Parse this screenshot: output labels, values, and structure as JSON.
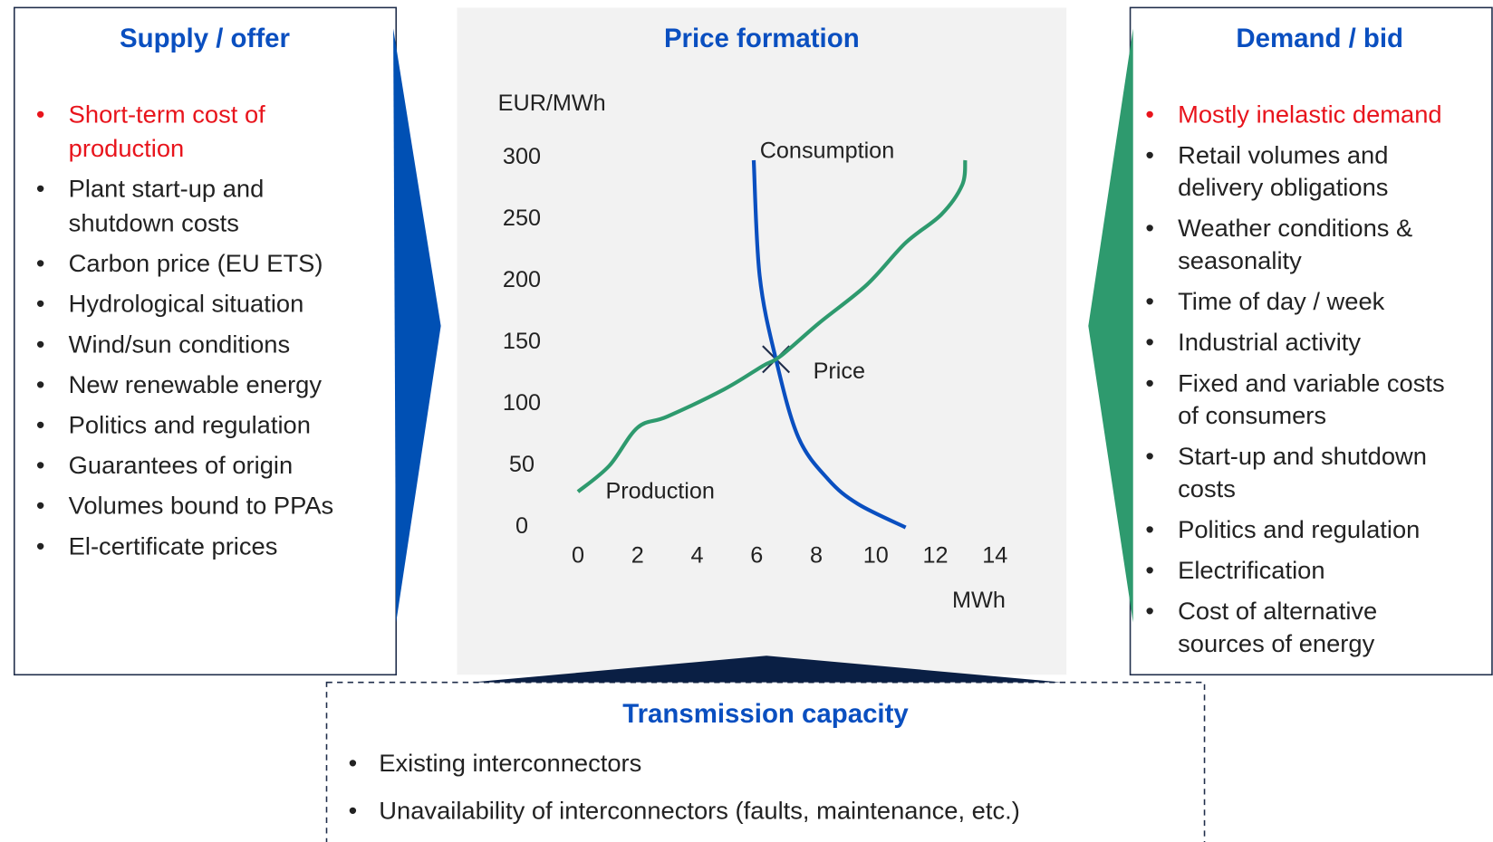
{
  "supply": {
    "title": "Supply / offer",
    "items": [
      [
        "Short-term cost of",
        "production"
      ],
      [
        "Plant start-up and",
        "shutdown costs"
      ],
      [
        "Carbon price (EU ETS)"
      ],
      [
        "Hydrological situation"
      ],
      [
        "Wind/sun conditions"
      ],
      [
        "New renewable energy"
      ],
      [
        "Politics and regulation"
      ],
      [
        "Guarantees of origin"
      ],
      [
        "Volumes bound to PPAs"
      ],
      [
        "El-certificate prices"
      ]
    ]
  },
  "price": {
    "title": "Price formation",
    "chart": {
      "type": "line",
      "ylabel": "EUR/MWh",
      "xlabel": "MWh",
      "xlim": [
        0,
        14
      ],
      "ylim": [
        0,
        300
      ],
      "xticks": [
        0,
        2,
        4,
        6,
        8,
        10,
        12,
        14
      ],
      "yticks": [
        0,
        50,
        100,
        150,
        200,
        250,
        300
      ],
      "annotation": "Price",
      "series": [
        {
          "name": "Consumption",
          "color": "#0a4fc0",
          "x": [
            5.9,
            6.1,
            6.65,
            7.4,
            8.4,
            9.4,
            11
          ],
          "values": [
            298,
            204,
            136,
            73,
            39,
            19,
            0
          ]
        },
        {
          "name": "Production",
          "color": "#2e9a6e",
          "x": [
            0,
            1.05,
            2,
            3,
            4.9,
            6.2,
            6.8,
            8.1,
            9.7,
            11,
            12.2,
            12.9,
            13
          ],
          "values": [
            29,
            50,
            81,
            90,
            112,
            131,
            139,
            166,
            197,
            231,
            254,
            278,
            298
          ]
        }
      ]
    }
  },
  "demand": {
    "title": "Demand / bid",
    "items": [
      [
        "Mostly inelastic demand"
      ],
      [
        "Retail volumes and",
        "delivery obligations"
      ],
      [
        "Weather conditions &",
        "seasonality"
      ],
      [
        "Time of day / week"
      ],
      [
        "Industrial activity"
      ],
      [
        "Fixed and variable costs",
        "of consumers"
      ],
      [
        "Start-up and shutdown",
        "costs"
      ],
      [
        "Politics and regulation"
      ],
      [
        "Electrification"
      ],
      [
        "Cost of alternative",
        "sources of energy"
      ]
    ]
  },
  "transmission": {
    "title": "Transmission capacity",
    "items": [
      [
        "Existing interconnectors"
      ],
      [
        "Unavailability of interconnectors (faults, maintenance, etc.)"
      ]
    ]
  }
}
